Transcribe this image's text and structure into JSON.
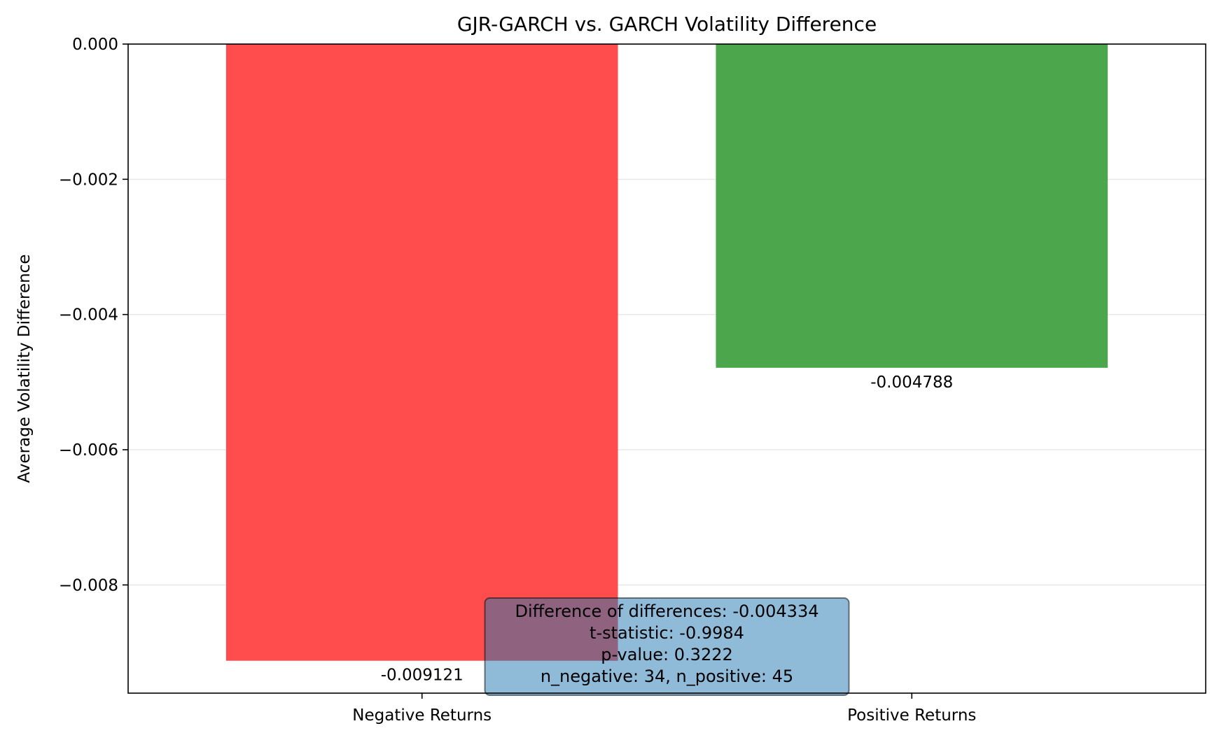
{
  "chart_data": {
    "type": "bar",
    "title": "GJR-GARCH vs. GARCH Volatility Difference",
    "xlabel": "",
    "ylabel": "Average Volatility Difference",
    "categories": [
      "Negative Returns",
      "Positive Returns"
    ],
    "values": [
      -0.009121,
      -0.004788
    ],
    "value_labels": [
      "-0.009121",
      "-0.004788"
    ],
    "colors": [
      "#ff4d4d",
      "#4ca64c"
    ],
    "ylim": [
      -0.0096,
      0.0
    ],
    "yticks": [
      0.0,
      -0.002,
      -0.004,
      -0.006,
      -0.008
    ],
    "ytick_labels": [
      "0.000",
      "−0.002",
      "−0.004",
      "−0.006",
      "−0.008"
    ],
    "grid": {
      "y": true,
      "x": false
    },
    "annotation": {
      "lines": [
        "Difference of differences: -0.004334",
        "t-statistic: -0.9984",
        "p-value: 0.3222",
        "n_negative: 34, n_positive: 45"
      ],
      "background": "#1f77b4",
      "placement": "bottom-center"
    }
  }
}
